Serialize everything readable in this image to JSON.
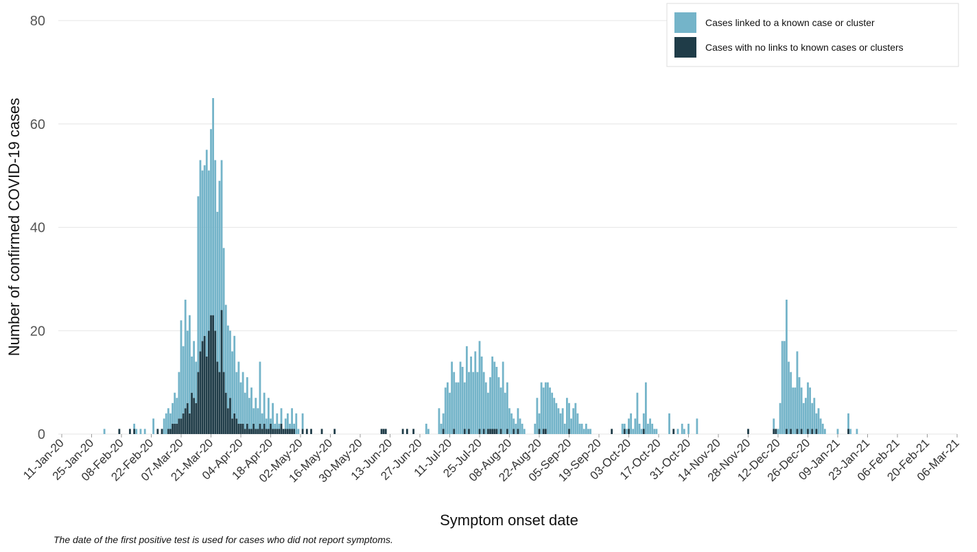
{
  "chart_data": {
    "type": "stacked-bar",
    "y_label": "Number of confirmed COVID-19 cases",
    "x_label": "Symptom onset date",
    "note": "The date of the first positive test is used for cases who did not report symptoms.",
    "legend": "top-right",
    "grid": true,
    "ylim": [
      0,
      80
    ],
    "yticks": [
      0,
      20,
      40,
      60,
      80
    ],
    "xlim": [
      "11-Jan-20",
      "06-Mar-21"
    ],
    "xticks": [
      "11-Jan-20",
      "25-Jan-20",
      "08-Feb-20",
      "22-Feb-20",
      "07-Mar-20",
      "21-Mar-20",
      "04-Apr-20",
      "18-Apr-20",
      "02-May-20",
      "16-May-20",
      "30-May-20",
      "13-Jun-20",
      "27-Jun-20",
      "11-Jul-20",
      "25-Jul-20",
      "08-Aug-20",
      "22-Aug-20",
      "05-Sep-20",
      "19-Sep-20",
      "03-Oct-20",
      "17-Oct-20",
      "31-Oct-20",
      "14-Nov-20",
      "28-Nov-20",
      "12-Dec-20",
      "26-Dec-20",
      "09-Jan-21",
      "23-Jan-21",
      "06-Feb-21",
      "20-Feb-21",
      "06-Mar-21"
    ],
    "x": [
      "31-Jan-20",
      "07-Feb-20",
      "12-Feb-20",
      "14-Feb-20",
      "15-Feb-20",
      "17-Feb-20",
      "19-Feb-20",
      "23-Feb-20",
      "25-Feb-20",
      "27-Feb-20",
      "28-Feb-20",
      "29-Feb-20",
      "01-Mar-20",
      "02-Mar-20",
      "03-Mar-20",
      "04-Mar-20",
      "05-Mar-20",
      "06-Mar-20",
      "07-Mar-20",
      "08-Mar-20",
      "09-Mar-20",
      "10-Mar-20",
      "11-Mar-20",
      "12-Mar-20",
      "13-Mar-20",
      "14-Mar-20",
      "15-Mar-20",
      "16-Mar-20",
      "17-Mar-20",
      "18-Mar-20",
      "19-Mar-20",
      "20-Mar-20",
      "21-Mar-20",
      "22-Mar-20",
      "23-Mar-20",
      "24-Mar-20",
      "25-Mar-20",
      "26-Mar-20",
      "27-Mar-20",
      "28-Mar-20",
      "29-Mar-20",
      "30-Mar-20",
      "31-Mar-20",
      "01-Apr-20",
      "02-Apr-20",
      "03-Apr-20",
      "04-Apr-20",
      "05-Apr-20",
      "06-Apr-20",
      "07-Apr-20",
      "08-Apr-20",
      "09-Apr-20",
      "10-Apr-20",
      "11-Apr-20",
      "12-Apr-20",
      "13-Apr-20",
      "14-Apr-20",
      "15-Apr-20",
      "16-Apr-20",
      "17-Apr-20",
      "18-Apr-20",
      "19-Apr-20",
      "20-Apr-20",
      "21-Apr-20",
      "22-Apr-20",
      "23-Apr-20",
      "24-Apr-20",
      "25-Apr-20",
      "26-Apr-20",
      "27-Apr-20",
      "28-Apr-20",
      "29-Apr-20",
      "30-Apr-20",
      "01-May-20",
      "03-May-20",
      "05-May-20",
      "07-May-20",
      "12-May-20",
      "18-May-20",
      "09-Jun-20",
      "10-Jun-20",
      "11-Jun-20",
      "19-Jun-20",
      "21-Jun-20",
      "24-Jun-20",
      "30-Jun-20",
      "01-Jul-20",
      "06-Jul-20",
      "07-Jul-20",
      "08-Jul-20",
      "09-Jul-20",
      "10-Jul-20",
      "11-Jul-20",
      "12-Jul-20",
      "13-Jul-20",
      "14-Jul-20",
      "15-Jul-20",
      "16-Jul-20",
      "17-Jul-20",
      "18-Jul-20",
      "19-Jul-20",
      "20-Jul-20",
      "21-Jul-20",
      "22-Jul-20",
      "23-Jul-20",
      "24-Jul-20",
      "25-Jul-20",
      "26-Jul-20",
      "27-Jul-20",
      "28-Jul-20",
      "29-Jul-20",
      "30-Jul-20",
      "31-Jul-20",
      "01-Aug-20",
      "02-Aug-20",
      "03-Aug-20",
      "04-Aug-20",
      "05-Aug-20",
      "06-Aug-20",
      "07-Aug-20",
      "08-Aug-20",
      "09-Aug-20",
      "10-Aug-20",
      "11-Aug-20",
      "12-Aug-20",
      "13-Aug-20",
      "14-Aug-20",
      "15-Aug-20",
      "20-Aug-20",
      "21-Aug-20",
      "22-Aug-20",
      "23-Aug-20",
      "24-Aug-20",
      "25-Aug-20",
      "26-Aug-20",
      "27-Aug-20",
      "28-Aug-20",
      "29-Aug-20",
      "30-Aug-20",
      "31-Aug-20",
      "01-Sep-20",
      "02-Sep-20",
      "03-Sep-20",
      "04-Sep-20",
      "05-Sep-20",
      "06-Sep-20",
      "07-Sep-20",
      "08-Sep-20",
      "09-Sep-20",
      "10-Sep-20",
      "11-Sep-20",
      "12-Sep-20",
      "13-Sep-20",
      "14-Sep-20",
      "15-Sep-20",
      "25-Sep-20",
      "30-Sep-20",
      "01-Oct-20",
      "02-Oct-20",
      "03-Oct-20",
      "04-Oct-20",
      "05-Oct-20",
      "06-Oct-20",
      "07-Oct-20",
      "08-Oct-20",
      "09-Oct-20",
      "10-Oct-20",
      "11-Oct-20",
      "12-Oct-20",
      "13-Oct-20",
      "14-Oct-20",
      "15-Oct-20",
      "16-Oct-20",
      "22-Oct-20",
      "24-Oct-20",
      "26-Oct-20",
      "28-Oct-20",
      "29-Oct-20",
      "31-Oct-20",
      "04-Nov-20",
      "28-Nov-20",
      "10-Dec-20",
      "11-Dec-20",
      "12-Dec-20",
      "13-Dec-20",
      "14-Dec-20",
      "15-Dec-20",
      "16-Dec-20",
      "17-Dec-20",
      "18-Dec-20",
      "19-Dec-20",
      "20-Dec-20",
      "21-Dec-20",
      "22-Dec-20",
      "23-Dec-20",
      "24-Dec-20",
      "25-Dec-20",
      "26-Dec-20",
      "27-Dec-20",
      "28-Dec-20",
      "29-Dec-20",
      "30-Dec-20",
      "31-Dec-20",
      "01-Jan-21",
      "02-Jan-21",
      "03-Jan-21",
      "09-Jan-21",
      "14-Jan-21",
      "15-Jan-21",
      "18-Jan-21"
    ],
    "series": [
      {
        "name": "Cases linked to a known case or cluster",
        "color": "#74b4c9",
        "values": [
          1,
          0,
          0,
          1,
          1,
          1,
          1,
          3,
          0,
          0,
          3,
          4,
          4,
          3,
          4,
          6,
          5,
          9,
          19,
          13,
          21,
          14,
          19,
          7,
          11,
          8,
          34,
          37,
          33,
          33,
          40,
          31,
          36,
          42,
          33,
          29,
          37,
          29,
          24,
          17,
          16,
          13,
          13,
          15,
          9,
          12,
          8,
          10,
          7,
          9,
          6,
          8,
          3,
          6,
          4,
          12,
          3,
          6,
          2,
          6,
          1,
          5,
          1,
          3,
          1,
          3,
          0,
          2,
          3,
          1,
          4,
          1,
          4,
          1,
          3,
          0,
          0,
          0,
          0,
          0,
          0,
          0,
          0,
          0,
          0,
          2,
          1,
          5,
          2,
          3,
          9,
          10,
          8,
          14,
          11,
          10,
          10,
          14,
          13,
          9,
          17,
          11,
          15,
          12,
          16,
          12,
          17,
          15,
          11,
          10,
          7,
          10,
          14,
          13,
          12,
          11,
          8,
          14,
          8,
          9,
          5,
          4,
          2,
          2,
          4,
          3,
          2,
          1,
          2,
          7,
          3,
          10,
          8,
          9,
          10,
          9,
          8,
          7,
          6,
          5,
          4,
          5,
          2,
          7,
          5,
          3,
          5,
          6,
          4,
          2,
          2,
          1,
          2,
          1,
          1,
          0,
          2,
          1,
          1,
          2,
          4,
          1,
          3,
          8,
          2,
          1,
          3,
          10,
          2,
          3,
          2,
          1,
          1,
          4,
          0,
          1,
          2,
          1,
          2,
          3,
          0,
          2,
          0,
          1,
          6,
          18,
          18,
          25,
          14,
          11,
          9,
          9,
          15,
          11,
          8,
          6,
          7,
          9,
          9,
          5,
          7,
          3,
          5,
          3,
          2,
          1,
          1,
          3,
          1,
          1
        ]
      },
      {
        "name": "Cases with no links to known cases or clusters",
        "color": "#1f3c48",
        "values": [
          0,
          1,
          1,
          1,
          0,
          0,
          0,
          0,
          1,
          1,
          0,
          0,
          1,
          1,
          2,
          2,
          2,
          3,
          3,
          4,
          5,
          6,
          4,
          8,
          7,
          6,
          12,
          16,
          18,
          19,
          15,
          20,
          23,
          23,
          20,
          14,
          12,
          24,
          12,
          8,
          5,
          7,
          3,
          4,
          3,
          2,
          2,
          2,
          1,
          2,
          1,
          1,
          2,
          1,
          1,
          2,
          1,
          2,
          1,
          1,
          2,
          1,
          1,
          1,
          1,
          2,
          1,
          1,
          1,
          1,
          1,
          1,
          0,
          0,
          1,
          1,
          1,
          1,
          1,
          1,
          1,
          1,
          1,
          1,
          1,
          0,
          0,
          0,
          0,
          1,
          0,
          0,
          0,
          0,
          1,
          0,
          0,
          0,
          0,
          1,
          0,
          1,
          0,
          0,
          0,
          0,
          1,
          0,
          1,
          0,
          1,
          1,
          1,
          1,
          1,
          0,
          1,
          0,
          0,
          1,
          0,
          0,
          1,
          0,
          1,
          0,
          0,
          0,
          0,
          0,
          1,
          0,
          1,
          1,
          0,
          0,
          0,
          0,
          0,
          0,
          0,
          0,
          0,
          0,
          1,
          0,
          0,
          0,
          0,
          0,
          0,
          0,
          0,
          0,
          0,
          1,
          0,
          1,
          0,
          1,
          0,
          0,
          0,
          0,
          0,
          0,
          1,
          0,
          0,
          0,
          0,
          0,
          0,
          0,
          1,
          0,
          0,
          0,
          0,
          0,
          1,
          1,
          1,
          0,
          0,
          0,
          0,
          1,
          0,
          1,
          0,
          0,
          1,
          0,
          1,
          0,
          0,
          1,
          0,
          1,
          0,
          1,
          0,
          0,
          0,
          0,
          0,
          1,
          0,
          0
        ]
      }
    ]
  }
}
